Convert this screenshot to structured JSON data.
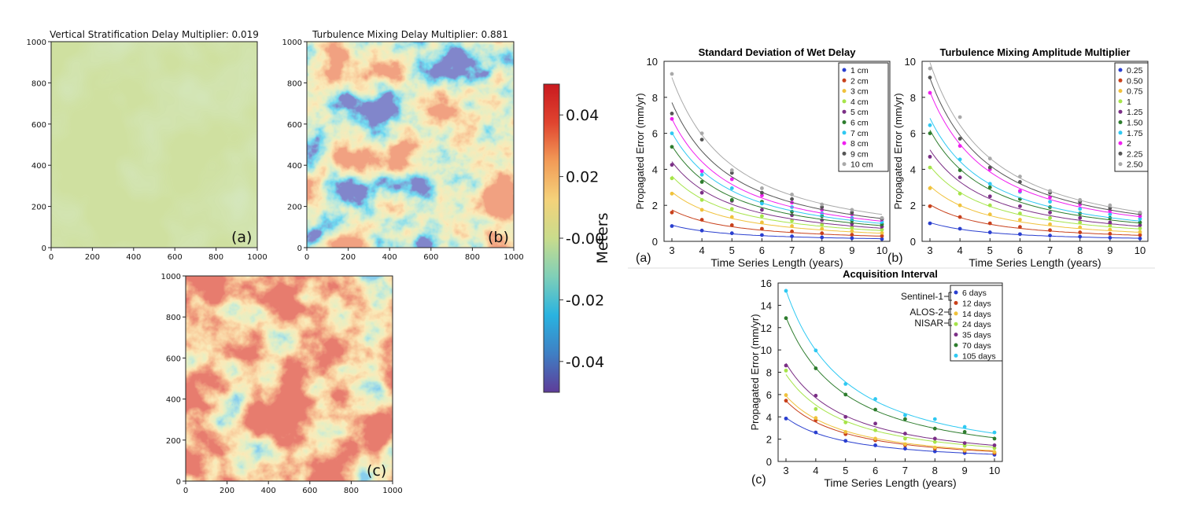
{
  "colors": {
    "colormap": [
      "#5e3c99",
      "#3f7fc4",
      "#29b3e0",
      "#7fcfb8",
      "#c9dc8c",
      "#f4d27a",
      "#f29b57",
      "#e0442f",
      "#c9191f"
    ],
    "panel_a_fill": "#cfe0a0",
    "panel_a_tint": "#b7d9b0"
  },
  "maps": {
    "panels": [
      {
        "title": "Vertical Stratification Delay Multiplier: 0.019",
        "tag": "(a)"
      },
      {
        "title": "Turbulence Mixing Delay Multiplier: 0.881",
        "tag": "(b)"
      },
      {
        "title": "",
        "tag": "(c)"
      }
    ],
    "x_ticks": [
      "0",
      "200",
      "400",
      "600",
      "800",
      "1000"
    ],
    "y_ticks": [
      "0",
      "200",
      "400",
      "600",
      "800",
      "1000"
    ]
  },
  "colorbar": {
    "label": "Meters",
    "ticks": [
      "0.04",
      "0.02",
      "-0.00",
      "-0.02",
      "-0.04"
    ],
    "range": [
      -0.05,
      0.05
    ]
  },
  "chart_data": [
    {
      "type": "scatter",
      "title": "Standard Deviation of Wet Delay",
      "panel_tag": "(a)",
      "xlabel": "Time Series Length (years)",
      "ylabel": "Propagated Error (mm/yr)",
      "xlim": [
        3,
        10
      ],
      "ylim": [
        0,
        10
      ],
      "x": [
        3,
        4,
        5,
        6,
        7,
        8,
        9,
        10
      ],
      "x_ticks": [
        "3",
        "4",
        "5",
        "6",
        "7",
        "8",
        "9",
        "10"
      ],
      "y_ticks": [
        "0",
        "2",
        "4",
        "6",
        "8",
        "10"
      ],
      "legend_position": "top-right",
      "series": [
        {
          "name": "1 cm",
          "color": "#2a3fcf",
          "values": [
            0.85,
            0.6,
            0.45,
            0.35,
            0.28,
            0.22,
            0.18,
            0.13
          ]
        },
        {
          "name": "2 cm",
          "color": "#c8401b",
          "values": [
            1.6,
            1.2,
            0.9,
            0.7,
            0.55,
            0.45,
            0.37,
            0.3
          ]
        },
        {
          "name": "3 cm",
          "color": "#f0c23c",
          "values": [
            2.65,
            1.75,
            1.35,
            1.05,
            0.85,
            0.7,
            0.57,
            0.47
          ]
        },
        {
          "name": "4 cm",
          "color": "#a6e44a",
          "values": [
            3.5,
            2.3,
            1.8,
            1.4,
            1.15,
            0.93,
            0.77,
            0.65
          ]
        },
        {
          "name": "5 cm",
          "color": "#7b2f86",
          "values": [
            4.25,
            2.7,
            2.25,
            1.75,
            1.45,
            1.18,
            0.97,
            0.82
          ]
        },
        {
          "name": "6 cm",
          "color": "#2e7d2e",
          "values": [
            5.25,
            3.3,
            2.3,
            2.2,
            1.65,
            1.4,
            1.15,
            0.95
          ]
        },
        {
          "name": "7 cm",
          "color": "#2fc9f2",
          "values": [
            6.0,
            3.7,
            2.95,
            2.1,
            1.9,
            1.55,
            1.3,
            1.08
          ]
        },
        {
          "name": "8 cm",
          "color": "#f01ff0",
          "values": [
            6.8,
            3.9,
            3.45,
            2.55,
            2.15,
            1.75,
            1.5,
            1.22
          ]
        },
        {
          "name": "9 cm",
          "color": "#555555",
          "values": [
            7.1,
            5.65,
            3.8,
            2.7,
            2.35,
            1.9,
            1.6,
            1.25
          ]
        },
        {
          "name": "10 cm",
          "color": "#a9a9a9",
          "values": [
            9.3,
            6.0,
            3.95,
            2.95,
            2.6,
            2.05,
            1.75,
            1.3
          ]
        }
      ]
    },
    {
      "type": "scatter",
      "title": "Turbulence Mixing Amplitude Multiplier",
      "panel_tag": "(b)",
      "xlabel": "Time Series Length (years)",
      "ylabel": "Propagated Error (mm/yr)",
      "xlim": [
        3,
        10
      ],
      "ylim": [
        0,
        10
      ],
      "x": [
        3,
        4,
        5,
        6,
        7,
        8,
        9,
        10
      ],
      "x_ticks": [
        "3",
        "4",
        "5",
        "6",
        "7",
        "8",
        "9",
        "10"
      ],
      "y_ticks": [
        "0",
        "2",
        "4",
        "6",
        "8",
        "10"
      ],
      "legend_position": "top-right",
      "series": [
        {
          "name": "0.25",
          "color": "#2a3fcf",
          "values": [
            1.0,
            0.7,
            0.5,
            0.4,
            0.32,
            0.26,
            0.2,
            0.16
          ]
        },
        {
          "name": "0.50",
          "color": "#c8401b",
          "values": [
            1.95,
            1.35,
            1.0,
            0.8,
            0.62,
            0.5,
            0.42,
            0.35
          ]
        },
        {
          "name": "0.75",
          "color": "#f0c23c",
          "values": [
            2.95,
            2.0,
            1.5,
            1.2,
            0.95,
            0.78,
            0.65,
            0.52
          ]
        },
        {
          "name": "1",
          "color": "#a6e44a",
          "values": [
            4.1,
            2.65,
            2.0,
            1.55,
            1.3,
            1.05,
            0.88,
            0.72
          ]
        },
        {
          "name": "1.25",
          "color": "#7b2f86",
          "values": [
            4.7,
            3.55,
            2.5,
            1.95,
            1.6,
            1.3,
            1.05,
            0.9
          ]
        },
        {
          "name": "1.50",
          "color": "#2e7d2e",
          "values": [
            6.0,
            3.95,
            3.0,
            2.35,
            1.9,
            1.55,
            1.3,
            1.05
          ]
        },
        {
          "name": "1.75",
          "color": "#2fc9f2",
          "values": [
            6.45,
            4.55,
            3.2,
            2.75,
            2.2,
            1.8,
            1.5,
            1.25
          ]
        },
        {
          "name": "2",
          "color": "#f01ff0",
          "values": [
            8.25,
            5.3,
            4.0,
            2.8,
            2.45,
            2.05,
            1.7,
            1.4
          ]
        },
        {
          "name": "2.25",
          "color": "#555555",
          "values": [
            9.1,
            5.7,
            4.1,
            3.3,
            2.7,
            2.2,
            1.85,
            1.55
          ]
        },
        {
          "name": "2.50",
          "color": "#a9a9a9",
          "values": [
            9.6,
            6.9,
            4.6,
            3.6,
            2.8,
            2.3,
            2.0,
            1.6
          ]
        }
      ]
    },
    {
      "type": "scatter",
      "title": "Acquisition Interval",
      "panel_tag": "(c)",
      "xlabel": "Time Series Length (years)",
      "ylabel": "Propagated Error (mm/yr)",
      "xlim": [
        3,
        10
      ],
      "ylim": [
        0,
        16
      ],
      "x": [
        3,
        4,
        5,
        6,
        7,
        8,
        9,
        10
      ],
      "x_ticks": [
        "3",
        "4",
        "5",
        "6",
        "7",
        "8",
        "9",
        "10"
      ],
      "y_ticks": [
        "0",
        "2",
        "4",
        "6",
        "8",
        "10",
        "12",
        "14",
        "16"
      ],
      "legend_position": "top-right",
      "missions": [
        "Sentinel-1",
        "ALOS-2",
        "NISAR"
      ],
      "series": [
        {
          "name": "6 days",
          "color": "#2a3fcf",
          "values": [
            3.85,
            2.6,
            1.85,
            1.45,
            1.15,
            0.9,
            0.75,
            0.6
          ]
        },
        {
          "name": "12 days",
          "color": "#c8401b",
          "values": [
            5.45,
            3.7,
            2.45,
            1.9,
            1.45,
            1.15,
            0.95,
            0.75
          ]
        },
        {
          "name": "14 days",
          "color": "#f0c23c",
          "values": [
            5.95,
            3.9,
            2.65,
            2.05,
            1.55,
            1.25,
            1.0,
            0.85
          ]
        },
        {
          "name": "24 days",
          "color": "#a6e44a",
          "values": [
            8.15,
            4.7,
            3.5,
            2.8,
            2.05,
            1.75,
            1.4,
            1.2
          ]
        },
        {
          "name": "35 days",
          "color": "#7b2f86",
          "values": [
            8.6,
            5.9,
            4.0,
            3.4,
            2.5,
            2.05,
            1.65,
            1.45
          ]
        },
        {
          "name": "70 days",
          "color": "#2e7d2e",
          "values": [
            12.85,
            8.35,
            6.0,
            4.65,
            3.8,
            2.95,
            2.65,
            2.05
          ]
        },
        {
          "name": "105 days",
          "color": "#2fc9f2",
          "values": [
            15.3,
            9.95,
            6.95,
            5.6,
            4.15,
            3.8,
            3.1,
            2.6
          ]
        }
      ]
    }
  ]
}
